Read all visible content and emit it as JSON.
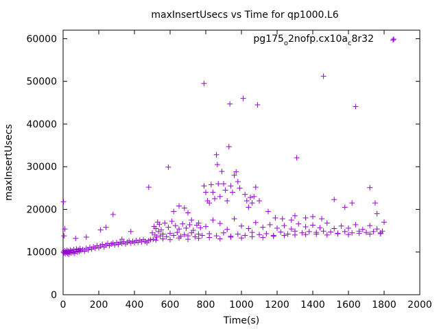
{
  "chart_data": {
    "type": "scatter",
    "title": "maxInsertUsecs vs Time for qp1000.L6",
    "xlabel": "Time(s)",
    "ylabel": "maxInsertUsecs",
    "xlim": [
      0,
      2000
    ],
    "ylim": [
      0,
      62000
    ],
    "xticks": [
      "0",
      "200",
      "400",
      "600",
      "800",
      "1000",
      "1200",
      "1400",
      "1600",
      "1800",
      "2000"
    ],
    "yticks": [
      "0",
      "10000",
      "20000",
      "30000",
      "40000",
      "50000",
      "60000"
    ],
    "grid": false,
    "legend_position": "top-right",
    "legend": {
      "base": "pg175",
      "sub1": "o",
      "mid": "2nofp.cx10a",
      "sub2": "c",
      "end": "8r32"
    },
    "series": [
      {
        "color": "#9400d3",
        "points": [
          [
            2,
            21800
          ],
          [
            5,
            13800
          ],
          [
            10,
            15400
          ],
          [
            70,
            13200
          ],
          [
            130,
            13500
          ],
          [
            280,
            18800
          ],
          [
            210,
            15200
          ],
          [
            240,
            15800
          ],
          [
            330,
            13000
          ],
          [
            380,
            14800
          ],
          [
            480,
            25200
          ],
          [
            590,
            29900
          ],
          [
            620,
            19500
          ],
          [
            650,
            20800
          ],
          [
            680,
            20300
          ],
          [
            700,
            19200
          ],
          [
            720,
            17500
          ],
          [
            760,
            16800
          ],
          [
            790,
            49500
          ],
          [
            790,
            25500
          ],
          [
            800,
            24000
          ],
          [
            810,
            22000
          ],
          [
            820,
            21500
          ],
          [
            830,
            25800
          ],
          [
            840,
            24000
          ],
          [
            850,
            22500
          ],
          [
            860,
            32800
          ],
          [
            865,
            30500
          ],
          [
            870,
            26000
          ],
          [
            880,
            23000
          ],
          [
            890,
            28900
          ],
          [
            900,
            26000
          ],
          [
            910,
            24500
          ],
          [
            920,
            22000
          ],
          [
            930,
            34700
          ],
          [
            935,
            44700
          ],
          [
            940,
            25500
          ],
          [
            950,
            24000
          ],
          [
            960,
            28000
          ],
          [
            970,
            28800
          ],
          [
            980,
            26500
          ],
          [
            990,
            25000
          ],
          [
            1010,
            46000
          ],
          [
            1020,
            23500
          ],
          [
            1030,
            22000
          ],
          [
            1040,
            20500
          ],
          [
            1050,
            22800
          ],
          [
            1060,
            21500
          ],
          [
            1070,
            23000
          ],
          [
            1080,
            25200
          ],
          [
            1090,
            44500
          ],
          [
            1100,
            22000
          ],
          [
            1150,
            19500
          ],
          [
            1190,
            18000
          ],
          [
            1230,
            17800
          ],
          [
            1280,
            17500
          ],
          [
            1300,
            18500
          ],
          [
            1310,
            32100
          ],
          [
            1360,
            18000
          ],
          [
            1400,
            18300
          ],
          [
            1450,
            17800
          ],
          [
            1460,
            51200
          ],
          [
            1520,
            22300
          ],
          [
            1580,
            20500
          ],
          [
            1620,
            21500
          ],
          [
            1640,
            44100
          ],
          [
            1720,
            25100
          ],
          [
            1750,
            21500
          ],
          [
            1760,
            19000
          ],
          [
            1800,
            17000
          ],
          [
            1850,
            59700
          ],
          [
            2,
            10000
          ],
          [
            5,
            9800
          ],
          [
            8,
            10300
          ],
          [
            12,
            9600
          ],
          [
            15,
            10100
          ],
          [
            18,
            9900
          ],
          [
            22,
            10400
          ],
          [
            25,
            9700
          ],
          [
            28,
            10200
          ],
          [
            32,
            9500
          ],
          [
            35,
            10000
          ],
          [
            40,
            10500
          ],
          [
            45,
            9800
          ],
          [
            50,
            10300
          ],
          [
            55,
            9900
          ],
          [
            60,
            10600
          ],
          [
            65,
            9700
          ],
          [
            70,
            10200
          ],
          [
            75,
            10700
          ],
          [
            80,
            10000
          ],
          [
            85,
            10500
          ],
          [
            90,
            10100
          ],
          [
            95,
            10800
          ],
          [
            100,
            10300
          ],
          [
            110,
            10600
          ],
          [
            120,
            10200
          ],
          [
            130,
            10900
          ],
          [
            140,
            10500
          ],
          [
            150,
            11100
          ],
          [
            160,
            10700
          ],
          [
            170,
            11200
          ],
          [
            180,
            10900
          ],
          [
            190,
            11500
          ],
          [
            200,
            11000
          ],
          [
            210,
            11400
          ],
          [
            220,
            11800
          ],
          [
            230,
            11200
          ],
          [
            240,
            11600
          ],
          [
            250,
            12000
          ],
          [
            260,
            11500
          ],
          [
            270,
            11900
          ],
          [
            280,
            12100
          ],
          [
            290,
            11700
          ],
          [
            300,
            12200
          ],
          [
            310,
            11800
          ],
          [
            320,
            12300
          ],
          [
            330,
            12000
          ],
          [
            340,
            12400
          ],
          [
            350,
            11900
          ],
          [
            360,
            12300
          ],
          [
            370,
            12600
          ],
          [
            380,
            12100
          ],
          [
            390,
            12500
          ],
          [
            400,
            12200
          ],
          [
            410,
            12700
          ],
          [
            420,
            12300
          ],
          [
            430,
            12800
          ],
          [
            440,
            12400
          ],
          [
            450,
            12900
          ],
          [
            460,
            12500
          ],
          [
            470,
            12200
          ],
          [
            480,
            12700
          ],
          [
            490,
            12900
          ],
          [
            500,
            14500
          ],
          [
            505,
            13000
          ],
          [
            510,
            16000
          ],
          [
            515,
            14000
          ],
          [
            520,
            15500
          ],
          [
            525,
            13500
          ],
          [
            530,
            17000
          ],
          [
            535,
            14800
          ],
          [
            540,
            16500
          ],
          [
            545,
            13800
          ],
          [
            550,
            15200
          ],
          [
            560,
            14200
          ],
          [
            570,
            16800
          ],
          [
            580,
            13600
          ],
          [
            590,
            15800
          ],
          [
            600,
            14400
          ],
          [
            610,
            17200
          ],
          [
            620,
            13900
          ],
          [
            630,
            16200
          ],
          [
            640,
            14600
          ],
          [
            650,
            15400
          ],
          [
            660,
            13700
          ],
          [
            670,
            16600
          ],
          [
            680,
            14100
          ],
          [
            690,
            15600
          ],
          [
            700,
            13800
          ],
          [
            710,
            16400
          ],
          [
            720,
            14500
          ],
          [
            730,
            15100
          ],
          [
            740,
            13600
          ],
          [
            750,
            16300
          ],
          [
            760,
            14200
          ],
          [
            770,
            15700
          ],
          [
            780,
            13900
          ],
          [
            800,
            16000
          ],
          [
            820,
            14300
          ],
          [
            840,
            17500
          ],
          [
            860,
            13800
          ],
          [
            880,
            16700
          ],
          [
            900,
            14500
          ],
          [
            920,
            15300
          ],
          [
            940,
            13700
          ],
          [
            960,
            17800
          ],
          [
            980,
            14200
          ],
          [
            1000,
            16100
          ],
          [
            1020,
            13900
          ],
          [
            1040,
            15500
          ],
          [
            1060,
            14600
          ],
          [
            1080,
            16900
          ],
          [
            1100,
            14100
          ],
          [
            1120,
            15800
          ],
          [
            1140,
            14300
          ],
          [
            1160,
            16400
          ],
          [
            1180,
            13900
          ],
          [
            1200,
            15600
          ],
          [
            1220,
            14700
          ],
          [
            1240,
            16200
          ],
          [
            1260,
            14200
          ],
          [
            1280,
            15400
          ],
          [
            1300,
            14900
          ],
          [
            1320,
            16600
          ],
          [
            1340,
            14500
          ],
          [
            1360,
            15900
          ],
          [
            1380,
            14800
          ],
          [
            1400,
            16300
          ],
          [
            1420,
            14600
          ],
          [
            1440,
            15700
          ],
          [
            1460,
            14900
          ],
          [
            1480,
            16800
          ],
          [
            1500,
            14700
          ],
          [
            1520,
            15500
          ],
          [
            1540,
            14400
          ],
          [
            1560,
            16100
          ],
          [
            1580,
            14800
          ],
          [
            1600,
            15600
          ],
          [
            1620,
            14500
          ],
          [
            1640,
            16400
          ],
          [
            1660,
            14900
          ],
          [
            1680,
            15300
          ],
          [
            1700,
            14600
          ],
          [
            1720,
            16200
          ],
          [
            1740,
            14800
          ],
          [
            1760,
            15400
          ],
          [
            1780,
            14300
          ],
          [
            1790,
            14900
          ],
          [
            520,
            12800
          ],
          [
            560,
            13100
          ],
          [
            600,
            12900
          ],
          [
            650,
            13300
          ],
          [
            700,
            13000
          ],
          [
            760,
            13200
          ],
          [
            820,
            13400
          ],
          [
            880,
            13100
          ],
          [
            940,
            13500
          ],
          [
            1000,
            13300
          ],
          [
            1060,
            13600
          ],
          [
            1120,
            13400
          ],
          [
            1180,
            13700
          ],
          [
            1240,
            13900
          ],
          [
            1300,
            14000
          ],
          [
            1360,
            14100
          ],
          [
            1420,
            14200
          ],
          [
            1480,
            14000
          ],
          [
            1540,
            14300
          ],
          [
            1600,
            14100
          ],
          [
            1660,
            14400
          ],
          [
            1720,
            14200
          ],
          [
            1780,
            14500
          ]
        ]
      }
    ]
  }
}
